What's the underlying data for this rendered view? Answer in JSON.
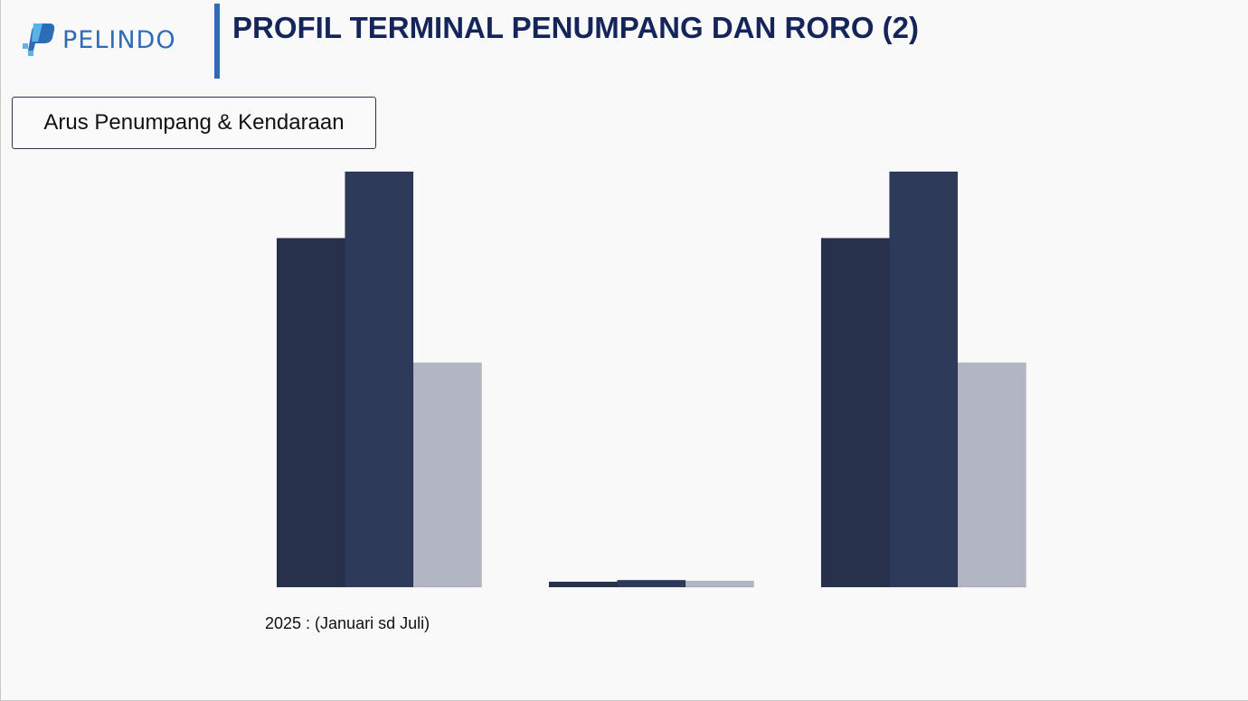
{
  "header": {
    "logo_text": "PELINDO",
    "title": "PROFIL TERMINAL PENUMPANG DAN RORO (2)",
    "accent_color": "#2f6bb8",
    "title_color": "#15255a"
  },
  "section_label": "Arus Penumpang & Kendaraan",
  "footnote": "2025 : (Januari sd Juli)",
  "chart_data": {
    "type": "bar",
    "categories": [
      "",
      "",
      ""
    ],
    "series": [
      {
        "values": [
          84,
          1.3,
          84
        ],
        "color": "#27314b"
      },
      {
        "values": [
          100,
          1.7,
          100
        ],
        "color": "#2e3a5a"
      },
      {
        "values": [
          54,
          1.5,
          54
        ],
        "color": "#b2b5c2"
      }
    ],
    "title": "",
    "xlabel": "",
    "ylabel": "",
    "ylim": [
      0,
      100
    ],
    "grid": false,
    "legend": "none"
  }
}
